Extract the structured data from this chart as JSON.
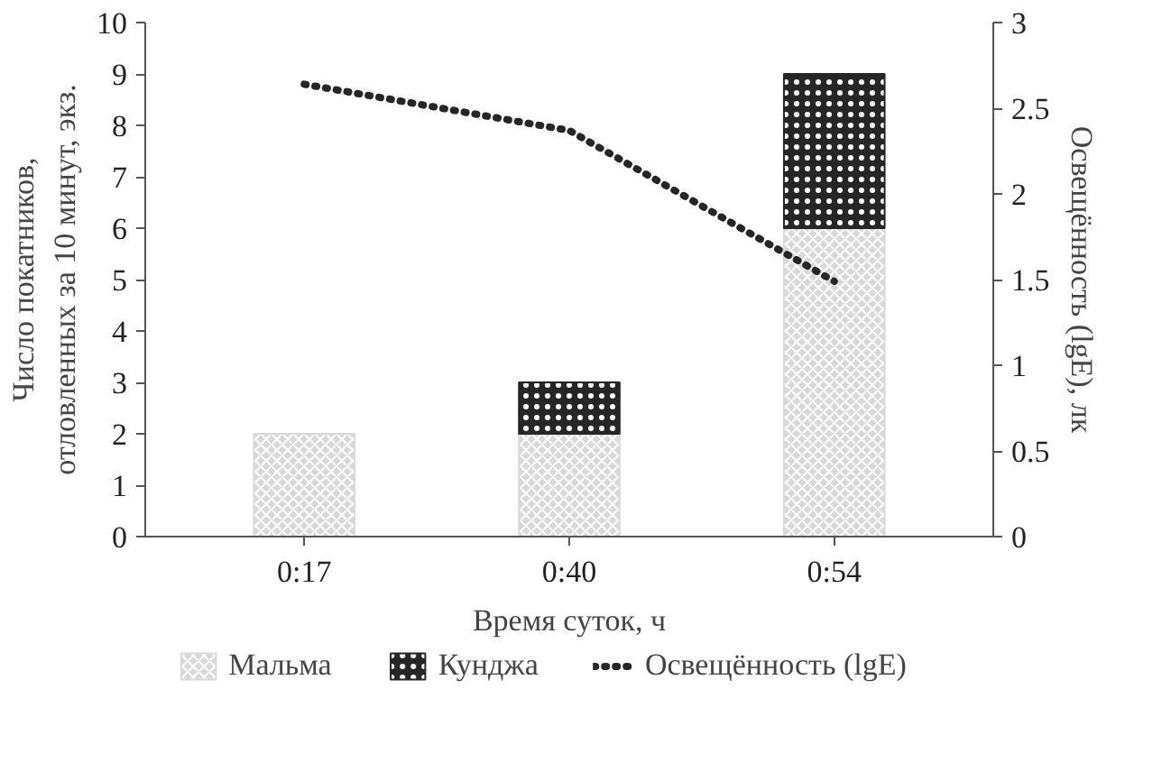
{
  "chart_data": {
    "type": "bar",
    "stacked": true,
    "xlabel": "Время суток, ч",
    "ylabel": "Число покатников,\nотловленных за 10 минут, экз.",
    "y2label": "Освещённость (lgE), лк",
    "categories": [
      "0:17",
      "0:40",
      "0:54"
    ],
    "series": [
      {
        "name": "Мальма",
        "color": "#d9d9d9",
        "values": [
          2,
          2,
          6
        ]
      },
      {
        "name": "Кунджа",
        "color": "#262626",
        "values": [
          0,
          1,
          3
        ]
      },
      {
        "name": "Освещённость (lgE)",
        "type": "line",
        "axis": "y2",
        "color": "#262626",
        "line_style": "dotted",
        "values": [
          2.64,
          2.37,
          1.49
        ]
      }
    ],
    "ylim": [
      0,
      10
    ],
    "yticks": [
      0,
      1,
      2,
      3,
      4,
      5,
      6,
      7,
      8,
      9,
      10
    ],
    "y2lim": [
      0,
      3
    ],
    "y2ticks": [
      0,
      0.5,
      1,
      1.5,
      2,
      2.5,
      3
    ],
    "grid": false,
    "legend": "bottom"
  }
}
